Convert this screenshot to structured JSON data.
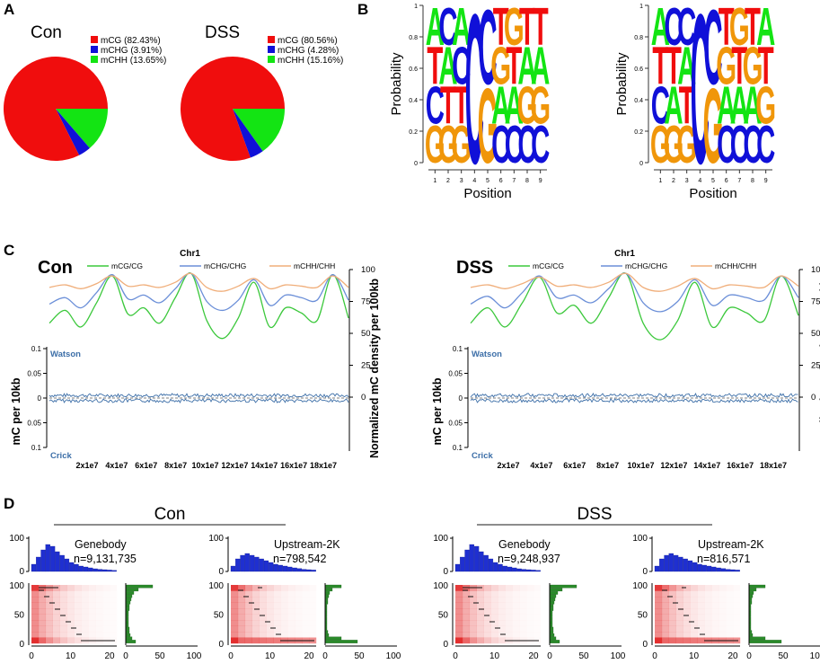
{
  "colors": {
    "red": "#f00d0d",
    "blue": "#1010d8",
    "green": "#13e413",
    "orange": "#f0960a",
    "dark_red": "#e01818",
    "navy": "#2b47b8",
    "bar_blue": "#1f2fd0",
    "bar_green": "#2a8a2a",
    "line_green": "#3cc83c",
    "line_blue": "#6b8fd8",
    "line_orange": "#f0ae7a",
    "trace": "#3d6fa8"
  },
  "panel_a": {
    "label": "A",
    "charts": [
      {
        "title": "Con",
        "legend": [
          "mCG (82.43%)",
          "mCHG (3.91%)",
          "mCHH (13.65%)"
        ],
        "values": [
          82.43,
          3.91,
          13.65
        ]
      },
      {
        "title": "DSS",
        "legend": [
          "mCG (80.56%)",
          "mCHG (4.28%)",
          "mCHH (15.16%)"
        ],
        "values": [
          80.56,
          4.28,
          15.16
        ]
      }
    ]
  },
  "panel_b": {
    "label": "B",
    "ylabel": "Probability",
    "xlabel": "Position",
    "yticks": [
      "0",
      "0.2",
      "0.4",
      "0.6",
      "0.8",
      "1"
    ],
    "xticks": [
      "1",
      "2",
      "3",
      "4",
      "5",
      "6",
      "7",
      "8",
      "9"
    ],
    "logos": [
      {
        "columns": [
          [
            "G",
            "C",
            "T",
            "A"
          ],
          [
            "G",
            "T",
            "A",
            "C"
          ],
          [
            "G",
            "T",
            "C",
            "A"
          ],
          [
            "C"
          ],
          [
            "G",
            "C"
          ],
          [
            "C",
            "A",
            "G",
            "T"
          ],
          [
            "C",
            "A",
            "T",
            "G"
          ],
          [
            "C",
            "G",
            "A",
            "T"
          ],
          [
            "C",
            "G",
            "A",
            "T"
          ]
        ]
      },
      {
        "columns": [
          [
            "G",
            "C",
            "T",
            "A"
          ],
          [
            "G",
            "A",
            "T",
            "C"
          ],
          [
            "G",
            "T",
            "A",
            "C"
          ],
          [
            "C"
          ],
          [
            "G",
            "C"
          ],
          [
            "C",
            "A",
            "G",
            "T"
          ],
          [
            "C",
            "A",
            "T",
            "G"
          ],
          [
            "C",
            "A",
            "G",
            "T"
          ],
          [
            "C",
            "G",
            "T",
            "A"
          ]
        ]
      }
    ]
  },
  "panel_c": {
    "label": "C",
    "chart_title": "Chr1",
    "legend": [
      "mCG/CG",
      "mCHG/CHG",
      "mCHH/CHH"
    ],
    "left_ylabel": "mC per 10kb",
    "right_ylabel": "Normalized mC density per 100kb",
    "left_ticks": [
      "0.1",
      "0.05",
      "0",
      "0.05",
      "0.1"
    ],
    "right_ticks": [
      "100",
      "75",
      "50",
      "25",
      "0"
    ],
    "xticks": [
      "2x1e7",
      "4x1e7",
      "6x1e7",
      "8x1e7",
      "10x1e7",
      "12x1e7",
      "14x1e7",
      "16x1e7",
      "18x1e7"
    ],
    "strand_top": "Watson",
    "strand_bottom": "Crick",
    "groups": [
      "Con",
      "DSS"
    ]
  },
  "panel_d": {
    "label": "D",
    "groups": [
      {
        "name": "Con",
        "plots": [
          {
            "title": "Genebody",
            "n": "n=9,131,735"
          },
          {
            "title": "Upstream-2K",
            "n": "n=798,542"
          }
        ]
      },
      {
        "name": "DSS",
        "plots": [
          {
            "title": "Genebody",
            "n": "n=9,248,937"
          },
          {
            "title": "Upstream-2K",
            "n": "n=816,571"
          }
        ]
      }
    ],
    "hist_y_ticks": [
      "100",
      "0"
    ],
    "heat_y_ticks": [
      "100",
      "50",
      "0"
    ],
    "heat_x_ticks": [
      "0",
      "10",
      "20"
    ],
    "side_x_ticks": [
      "0",
      "50",
      "100"
    ]
  },
  "chart_data": [
    {
      "type": "pie",
      "title": "Con",
      "categories": [
        "mCG",
        "mCHG",
        "mCHH"
      ],
      "values": [
        82.43,
        3.91,
        13.65
      ]
    },
    {
      "type": "pie",
      "title": "DSS",
      "categories": [
        "mCG",
        "mCHG",
        "mCHH"
      ],
      "values": [
        80.56,
        4.28,
        15.16
      ]
    },
    {
      "type": "line",
      "title": "Chr1 (Con)",
      "xlabel": "",
      "ylabel": "Normalized mC density per 100kb",
      "ylim": [
        0,
        100
      ],
      "x": [
        0,
        1,
        2,
        3,
        4,
        5,
        6,
        7,
        8,
        9,
        10,
        11,
        12,
        13,
        14,
        15,
        16,
        17,
        18,
        19
      ],
      "series": [
        {
          "name": "mCG/CG",
          "values": [
            58,
            68,
            55,
            74,
            95,
            65,
            70,
            58,
            78,
            97,
            60,
            46,
            62,
            90,
            55,
            70,
            66,
            60,
            96,
            62
          ]
        },
        {
          "name": "mCHG/CHG",
          "values": [
            73,
            78,
            70,
            82,
            96,
            77,
            80,
            74,
            85,
            97,
            75,
            68,
            76,
            92,
            72,
            80,
            78,
            76,
            96,
            76
          ]
        },
        {
          "name": "mCHH/CHH",
          "values": [
            86,
            88,
            85,
            89,
            95,
            87,
            88,
            86,
            90,
            97,
            86,
            83,
            87,
            93,
            85,
            88,
            87,
            86,
            95,
            86
          ]
        }
      ]
    },
    {
      "type": "line",
      "title": "Chr1 (DSS)",
      "xlabel": "",
      "ylabel": "Normalized mC density per 100kb",
      "ylim": [
        0,
        100
      ],
      "x": [
        0,
        1,
        2,
        3,
        4,
        5,
        6,
        7,
        8,
        9,
        10,
        11,
        12,
        13,
        14,
        15,
        16,
        17,
        18,
        19
      ],
      "series": [
        {
          "name": "mCG/CG",
          "values": [
            58,
            70,
            55,
            74,
            94,
            66,
            72,
            58,
            78,
            97,
            58,
            45,
            60,
            90,
            55,
            70,
            66,
            60,
            95,
            64
          ]
        },
        {
          "name": "mCHG/CHG",
          "values": [
            73,
            79,
            70,
            82,
            95,
            78,
            80,
            74,
            85,
            97,
            74,
            67,
            75,
            92,
            72,
            80,
            78,
            76,
            95,
            78
          ]
        },
        {
          "name": "mCHH/CHH",
          "values": [
            86,
            88,
            85,
            89,
            94,
            87,
            88,
            86,
            90,
            97,
            86,
            83,
            87,
            93,
            85,
            88,
            87,
            86,
            95,
            87
          ]
        }
      ]
    }
  ]
}
